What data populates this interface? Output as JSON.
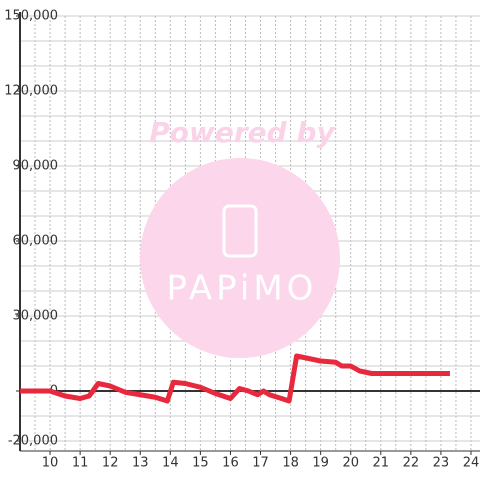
{
  "chart_data": {
    "type": "line",
    "watermark": {
      "line1": "Powered by",
      "line2": "PAPiMO"
    },
    "x": [
      9,
      10,
      10.5,
      11,
      11.3,
      11.6,
      12,
      12.5,
      13,
      13.5,
      13.9,
      14.1,
      14.5,
      15,
      15.5,
      16,
      16.3,
      16.6,
      16.9,
      17.1,
      17.3,
      17.7,
      17.95,
      18.2,
      19,
      19.5,
      19.7,
      20,
      20.3,
      20.7,
      21,
      23.3
    ],
    "series": [
      {
        "color": "#e8283c",
        "values": [
          0,
          0,
          -2000,
          -3000,
          -2000,
          3000,
          2000,
          -500,
          -1500,
          -2500,
          -4000,
          3500,
          3000,
          1500,
          -1000,
          -3000,
          1000,
          0,
          -1500,
          0,
          -1500,
          -3000,
          -4000,
          14000,
          12000,
          11500,
          10000,
          10000,
          8000,
          7000,
          7000,
          7000
        ]
      }
    ],
    "xlim": [
      9,
      24.3
    ],
    "xticks": [
      10,
      11,
      12,
      13,
      14,
      15,
      16,
      17,
      18,
      19,
      20,
      21,
      22,
      23,
      24
    ],
    "x_minor_ticks": [
      9.5,
      10.5,
      11.5,
      12.5,
      13.5,
      14.5,
      15.5,
      16.5,
      17.5,
      18.5,
      19.5,
      20.5,
      21.5,
      22.5,
      23.5
    ],
    "ylim": [
      -24000,
      150000
    ],
    "yticks": [
      {
        "value": -20000,
        "label": "-20,000"
      },
      0,
      {
        "value": 30000,
        "label": "30,000"
      },
      {
        "value": 60000,
        "label": "60,000"
      },
      {
        "value": 90000,
        "label": "90,000"
      },
      {
        "value": 120000,
        "label": "120,000"
      },
      {
        "value": 150000,
        "label": "150,000"
      }
    ],
    "y_minor_ticks": [
      -10000,
      10000,
      20000,
      40000,
      50000,
      70000,
      80000,
      100000,
      110000,
      130000,
      140000
    ],
    "grid": true
  }
}
